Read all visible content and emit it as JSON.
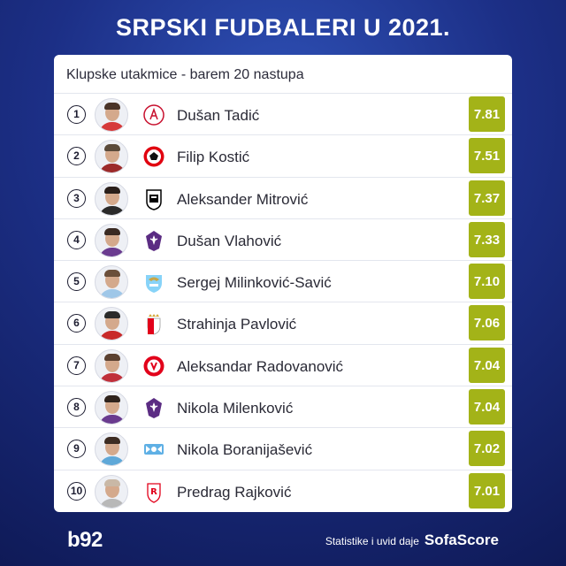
{
  "title": "SRPSKI FUDBALERI U 2021.",
  "subtitle": "Klupske utakmice - barem 20 nastupa",
  "colors": {
    "background": "#1c2f86",
    "rating_badge": "#a3b318"
  },
  "players": [
    {
      "rank": "1",
      "name": "Dušan Tadić",
      "rating": "7.81",
      "club_icon": "ajax-crest-icon",
      "club_colors": [
        "#ffffff",
        "#c8102e"
      ]
    },
    {
      "rank": "2",
      "name": "Filip Kostić",
      "rating": "7.51",
      "club_icon": "eintracht-frankfurt-crest-icon",
      "club_colors": [
        "#e1000f",
        "#ffffff"
      ]
    },
    {
      "rank": "3",
      "name": "Aleksander Mitrović",
      "rating": "7.37",
      "club_icon": "fulham-crest-icon",
      "club_colors": [
        "#ffffff",
        "#000000"
      ]
    },
    {
      "rank": "4",
      "name": "Dušan Vlahović",
      "rating": "7.33",
      "club_icon": "fiorentina-crest-icon",
      "club_colors": [
        "#5b2c83",
        "#ffffff"
      ]
    },
    {
      "rank": "5",
      "name": "Sergej Milinković-Savić",
      "rating": "7.10",
      "club_icon": "lazio-crest-icon",
      "club_colors": [
        "#87d3f8",
        "#c9a646"
      ]
    },
    {
      "rank": "6",
      "name": "Strahinja Pavlović",
      "rating": "7.06",
      "club_icon": "monaco-crest-icon",
      "club_colors": [
        "#e2001a",
        "#ffffff"
      ]
    },
    {
      "rank": "7",
      "name": "Aleksandar Radovanović",
      "rating": "7.04",
      "club_icon": "kortrijk-crest-icon",
      "club_colors": [
        "#e2001a",
        "#ffffff"
      ]
    },
    {
      "rank": "8",
      "name": "Nikola Milenković",
      "rating": "7.04",
      "club_icon": "fiorentina-crest-icon",
      "club_colors": [
        "#5b2c83",
        "#ffffff"
      ]
    },
    {
      "rank": "9",
      "name": "Nikola Boranijašević",
      "rating": "7.02",
      "club_icon": "zurich-crest-icon",
      "club_colors": [
        "#5fb0e5",
        "#ffffff"
      ]
    },
    {
      "rank": "10",
      "name": "Predrag Rajković",
      "rating": "7.01",
      "club_icon": "reims-crest-icon",
      "club_colors": [
        "#e2001a",
        "#ffffff"
      ]
    }
  ],
  "footer": {
    "logo": "b92",
    "credit_text": "Statistike i uvid daje",
    "credit_brand": "SofaScore"
  }
}
